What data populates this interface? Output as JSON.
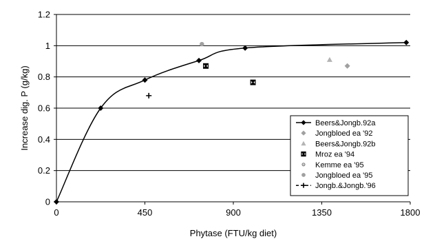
{
  "chart_data": {
    "type": "scatter",
    "title": "",
    "xlabel": "Phytase (FTU/kg diet)",
    "ylabel": "Increase dig. P (g/kg)",
    "xlim": [
      0,
      1800
    ],
    "ylim": [
      0,
      1.2
    ],
    "x_ticks": [
      "0",
      "450",
      "900",
      "1350",
      "1800"
    ],
    "y_ticks": [
      "0",
      "0.2",
      "0.4",
      "0.6",
      "0.8",
      "1",
      "1.2"
    ],
    "grid": "horizontal",
    "legend_position": "bottom-right",
    "series": [
      {
        "name": "Beers&Jongb.92a",
        "marker": "diamond",
        "color": "#000000",
        "line": true,
        "x": [
          0,
          225,
          450,
          725,
          960,
          1780
        ],
        "y": [
          0,
          0.6,
          0.78,
          0.905,
          0.985,
          1.02
        ]
      },
      {
        "name": "Jongbloed ea '92",
        "marker": "diamond",
        "color": "#a0a0a0",
        "line": false,
        "x": [
          1480
        ],
        "y": [
          0.87
        ]
      },
      {
        "name": "Beers&Jongb.92b",
        "marker": "triangle",
        "color": "#b4b4b4",
        "line": false,
        "x": [
          1390
        ],
        "y": [
          0.91
        ]
      },
      {
        "name": "Mroz ea '94",
        "marker": "boxx",
        "color": "#000000",
        "line": false,
        "x": [
          760,
          1000
        ],
        "y": [
          0.87,
          0.765
        ]
      },
      {
        "name": "Kemme ea '95",
        "marker": "circle-small",
        "color": "#808080",
        "line": false,
        "x": [],
        "y": []
      },
      {
        "name": "Jongbloed ea '95",
        "marker": "circle",
        "color": "#a0a0a0",
        "line": false,
        "x": [
          740
        ],
        "y": [
          1.01
        ]
      },
      {
        "name": "Jongb.&Jongb.'96",
        "marker": "plus",
        "color": "#000000",
        "line": false,
        "x": [
          470
        ],
        "y": [
          0.68
        ]
      }
    ]
  }
}
